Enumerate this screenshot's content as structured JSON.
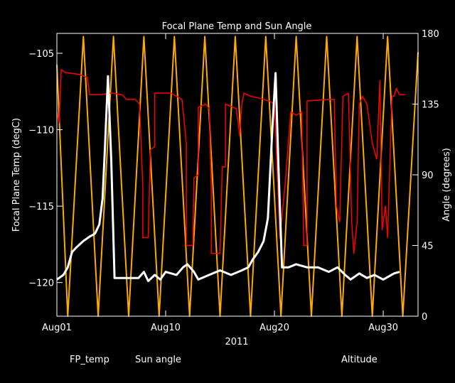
{
  "chart_data": {
    "type": "line",
    "title": "Focal Plane Temp and Sun Angle",
    "xlabel": "2011",
    "ylabel_left": "Focal Plane Temp (degC)",
    "ylabel_right": "Angle (degrees)",
    "x_ticks": [
      "Aug01",
      "Aug10",
      "Aug20",
      "Aug30"
    ],
    "x_tick_days": [
      0,
      10,
      20,
      30
    ],
    "xlim_days": [
      0,
      33.2
    ],
    "ylim_left": [
      -122.2,
      -103.7
    ],
    "yticks_left": [
      -105,
      -110,
      -115,
      -120
    ],
    "ylim_right": [
      0,
      180
    ],
    "yticks_right": [
      0,
      45,
      90,
      135,
      180
    ],
    "legend": [
      "FP_temp",
      "Sun angle",
      "Altitude"
    ],
    "colors": {
      "FP_temp": "#ffffff",
      "Sun angle": "#ff0000",
      "Altitude": "#ffaa00",
      "axes": "#ffffff"
    },
    "series": [
      {
        "name": "FP_temp",
        "axis": "left",
        "points": [
          [
            0.0,
            -119.8
          ],
          [
            0.6,
            -119.5
          ],
          [
            1.0,
            -119.0
          ],
          [
            1.4,
            -118.0
          ],
          [
            1.8,
            -117.7
          ],
          [
            2.4,
            -117.3
          ],
          [
            3.0,
            -117.0
          ],
          [
            3.5,
            -116.8
          ],
          [
            3.9,
            -116.2
          ],
          [
            4.2,
            -114.5
          ],
          [
            4.4,
            -111.5
          ],
          [
            4.7,
            -106.5
          ],
          [
            5.0,
            -112.0
          ],
          [
            5.3,
            -119.7
          ],
          [
            6.0,
            -119.7
          ],
          [
            7.0,
            -119.7
          ],
          [
            7.5,
            -119.7
          ],
          [
            8.0,
            -119.3
          ],
          [
            8.4,
            -119.9
          ],
          [
            9.0,
            -119.5
          ],
          [
            9.5,
            -119.8
          ],
          [
            10.0,
            -119.3
          ],
          [
            11.0,
            -119.5
          ],
          [
            11.6,
            -119.0
          ],
          [
            12.0,
            -118.8
          ],
          [
            12.6,
            -119.3
          ],
          [
            13.0,
            -119.8
          ],
          [
            14.0,
            -119.5
          ],
          [
            15.0,
            -119.2
          ],
          [
            16.0,
            -119.5
          ],
          [
            17.0,
            -119.2
          ],
          [
            17.6,
            -119.0
          ],
          [
            18.0,
            -118.5
          ],
          [
            18.5,
            -118.0
          ],
          [
            19.0,
            -117.3
          ],
          [
            19.4,
            -115.8
          ],
          [
            19.8,
            -110.0
          ],
          [
            20.1,
            -106.3
          ],
          [
            20.4,
            -113.0
          ],
          [
            20.7,
            -119.0
          ],
          [
            21.3,
            -119.0
          ],
          [
            22.0,
            -118.8
          ],
          [
            23.0,
            -119.0
          ],
          [
            24.0,
            -119.0
          ],
          [
            25.0,
            -119.3
          ],
          [
            25.8,
            -119.0
          ],
          [
            26.5,
            -119.5
          ],
          [
            27.0,
            -119.8
          ],
          [
            27.8,
            -119.4
          ],
          [
            28.5,
            -119.7
          ],
          [
            29.2,
            -119.5
          ],
          [
            30.0,
            -119.8
          ],
          [
            31.0,
            -119.4
          ],
          [
            31.5,
            -119.3
          ]
        ]
      },
      {
        "name": "Sun angle",
        "axis": "right",
        "points": [
          [
            0.0,
            130.0
          ],
          [
            0.2,
            123.0
          ],
          [
            0.4,
            157.0
          ],
          [
            0.8,
            155.0
          ],
          [
            2.0,
            154.0
          ],
          [
            2.8,
            152.0
          ],
          [
            3.0,
            141.0
          ],
          [
            4.0,
            141.0
          ],
          [
            5.0,
            142.0
          ],
          [
            6.0,
            141.0
          ],
          [
            6.4,
            138.0
          ],
          [
            7.2,
            138.0
          ],
          [
            7.6,
            135.0
          ],
          [
            7.9,
            83.0
          ],
          [
            7.9,
            50.0
          ],
          [
            8.4,
            50.0
          ],
          [
            8.6,
            106.0
          ],
          [
            9.0,
            108.0
          ],
          [
            9.0,
            142.0
          ],
          [
            10.5,
            142.0
          ],
          [
            11.0,
            140.0
          ],
          [
            11.5,
            138.0
          ],
          [
            11.9,
            110.0
          ],
          [
            11.9,
            45.0
          ],
          [
            12.5,
            45.0
          ],
          [
            12.6,
            88.0
          ],
          [
            13.0,
            90.0
          ],
          [
            13.0,
            133.0
          ],
          [
            13.7,
            135.0
          ],
          [
            14.0,
            132.0
          ],
          [
            14.2,
            80.0
          ],
          [
            14.2,
            40.0
          ],
          [
            15.0,
            40.0
          ],
          [
            15.2,
            95.0
          ],
          [
            15.5,
            95.0
          ],
          [
            15.5,
            135.0
          ],
          [
            16.2,
            133.0
          ],
          [
            16.5,
            132.0
          ],
          [
            16.8,
            115.0
          ],
          [
            17.0,
            135.0
          ],
          [
            17.2,
            142.0
          ],
          [
            17.8,
            140.0
          ],
          [
            18.5,
            139.0
          ],
          [
            19.5,
            137.0
          ],
          [
            20.0,
            135.0
          ],
          [
            20.5,
            50.0
          ],
          [
            21.0,
            85.0
          ],
          [
            21.5,
            130.0
          ],
          [
            22.0,
            128.0
          ],
          [
            22.5,
            130.0
          ],
          [
            22.7,
            45.0
          ],
          [
            23.0,
            45.0
          ],
          [
            23.0,
            137.0
          ],
          [
            25.0,
            138.0
          ],
          [
            25.5,
            138.0
          ],
          [
            25.7,
            70.0
          ],
          [
            26.0,
            60.0
          ],
          [
            26.3,
            140.0
          ],
          [
            26.8,
            142.0
          ],
          [
            27.1,
            60.0
          ],
          [
            27.3,
            40.0
          ],
          [
            27.6,
            60.0
          ],
          [
            27.8,
            135.0
          ],
          [
            28.1,
            140.0
          ],
          [
            28.5,
            135.0
          ],
          [
            29.0,
            110.0
          ],
          [
            29.4,
            100.0
          ],
          [
            29.7,
            150.0
          ],
          [
            29.9,
            55.0
          ],
          [
            30.2,
            70.0
          ],
          [
            30.4,
            50.0
          ],
          [
            30.8,
            140.0
          ],
          [
            31.0,
            140.0
          ],
          [
            31.2,
            145.0
          ],
          [
            31.5,
            141.0
          ],
          [
            32.0,
            141.0
          ]
        ]
      },
      {
        "name": "Altitude",
        "axis": "right",
        "points": [
          [
            0.0,
            160.0
          ],
          [
            1.0,
            0.0
          ],
          [
            2.44,
            178.0
          ],
          [
            3.8,
            0.0
          ],
          [
            5.2,
            178.0
          ],
          [
            6.6,
            0.0
          ],
          [
            8.0,
            178.0
          ],
          [
            9.4,
            0.0
          ],
          [
            10.8,
            178.0
          ],
          [
            12.2,
            0.0
          ],
          [
            13.6,
            178.0
          ],
          [
            15.0,
            0.0
          ],
          [
            16.4,
            178.0
          ],
          [
            17.8,
            0.0
          ],
          [
            19.2,
            178.0
          ],
          [
            20.6,
            0.0
          ],
          [
            22.0,
            178.0
          ],
          [
            23.4,
            0.0
          ],
          [
            24.8,
            178.0
          ],
          [
            26.2,
            0.0
          ],
          [
            27.6,
            178.0
          ],
          [
            29.0,
            0.0
          ],
          [
            30.4,
            178.0
          ],
          [
            31.8,
            0.0
          ],
          [
            33.2,
            168.0
          ]
        ]
      }
    ]
  }
}
